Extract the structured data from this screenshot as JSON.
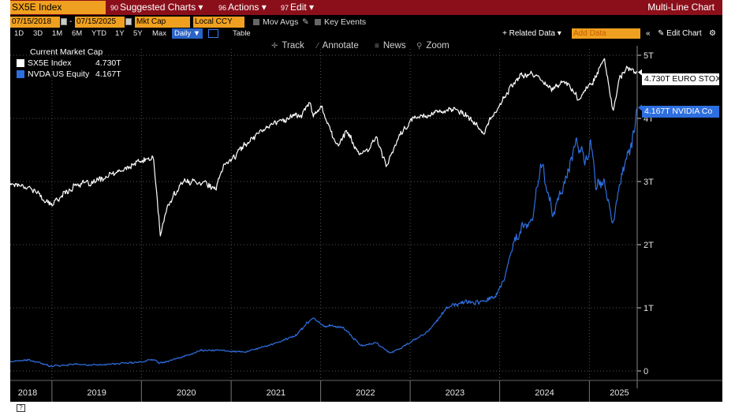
{
  "titlebar": {
    "ticker": "SX5E Index",
    "menus": [
      {
        "num": "90",
        "label": "Suggested Charts ▾"
      },
      {
        "num": "96",
        "label": "Actions ▾"
      },
      {
        "num": "97",
        "label": "Edit ▾"
      }
    ],
    "window_title": "Multi-Line Chart"
  },
  "controls": {
    "start_date": "07/15/2018",
    "end_date": "07/15/2025",
    "field": "Mkt Cap",
    "currency": "Local CCY",
    "mov_avgs": "Mov Avgs",
    "key_events": "Key Events",
    "periods": [
      "1D",
      "3D",
      "1M",
      "6M",
      "YTD",
      "1Y",
      "5Y",
      "Max"
    ],
    "frequency": "Daily ▼",
    "table": "Table",
    "related_data": "+ Related Data ▾",
    "add_data_placeholder": "Add Data",
    "edit_chart": "Edit Chart"
  },
  "toolbar": {
    "track": "Track",
    "annotate": "Annotate",
    "news": "News",
    "zoom": "Zoom"
  },
  "legend": {
    "title": "Current Market Cap",
    "items": [
      {
        "name": "SX5E Index",
        "value": "4.730T",
        "color": "#ffffff"
      },
      {
        "name": "NVDA US Equity",
        "value": "4.167T",
        "color": "#2e6fe0"
      }
    ]
  },
  "tags": {
    "sx5e": "4.730T EURO STOX",
    "nvda": "4.167T NVIDIA Co"
  },
  "colors": {
    "background": "#000000",
    "title_bar": "#8b0f1a",
    "accent_orange": "#f0a020",
    "series_white": "#ffffff",
    "series_blue": "#2e6fe0"
  },
  "chart_data": {
    "type": "line",
    "xlim": [
      "2018-07-15",
      "2025-07-15"
    ],
    "ylim": [
      -0.15,
      5.1
    ],
    "yticks": [
      0,
      1,
      2,
      3,
      4,
      5
    ],
    "ytick_labels": [
      "0",
      "1T",
      "2T",
      "3T",
      "4T",
      "5T"
    ],
    "xtick_labels": [
      "2018",
      "2019",
      "2020",
      "2021",
      "2022",
      "2023",
      "2024",
      "2025"
    ],
    "series": [
      {
        "name": "SX5E Index",
        "color": "#ffffff",
        "points": [
          [
            "2018-07-15",
            2.97
          ],
          [
            "2018-09-01",
            2.95
          ],
          [
            "2018-10-15",
            2.88
          ],
          [
            "2018-12-27",
            2.62
          ],
          [
            "2019-02-15",
            2.8
          ],
          [
            "2019-04-15",
            2.97
          ],
          [
            "2019-06-01",
            2.95
          ],
          [
            "2019-08-15",
            3.08
          ],
          [
            "2019-10-15",
            3.17
          ],
          [
            "2019-12-15",
            3.3
          ],
          [
            "2020-02-19",
            3.38
          ],
          [
            "2020-03-18",
            2.15
          ],
          [
            "2020-04-15",
            2.58
          ],
          [
            "2020-06-08",
            2.97
          ],
          [
            "2020-07-15",
            3.0
          ],
          [
            "2020-09-15",
            3.0
          ],
          [
            "2020-10-30",
            2.85
          ],
          [
            "2020-11-30",
            3.25
          ],
          [
            "2021-01-15",
            3.4
          ],
          [
            "2021-03-15",
            3.65
          ],
          [
            "2021-05-15",
            3.85
          ],
          [
            "2021-07-15",
            3.95
          ],
          [
            "2021-09-15",
            4.05
          ],
          [
            "2021-10-15",
            4.05
          ],
          [
            "2021-11-17",
            4.25
          ],
          [
            "2021-12-01",
            4.05
          ],
          [
            "2022-01-05",
            4.2
          ],
          [
            "2022-03-07",
            3.55
          ],
          [
            "2022-04-15",
            3.8
          ],
          [
            "2022-05-15",
            3.6
          ],
          [
            "2022-06-15",
            3.4
          ],
          [
            "2022-07-15",
            3.5
          ],
          [
            "2022-08-15",
            3.7
          ],
          [
            "2022-09-29",
            3.25
          ],
          [
            "2022-11-15",
            3.7
          ],
          [
            "2023-01-15",
            4.0
          ],
          [
            "2023-03-01",
            4.05
          ],
          [
            "2023-04-15",
            4.1
          ],
          [
            "2023-06-15",
            4.15
          ],
          [
            "2023-08-15",
            4.05
          ],
          [
            "2023-10-27",
            3.78
          ],
          [
            "2023-12-15",
            4.1
          ],
          [
            "2024-02-15",
            4.5
          ],
          [
            "2024-03-31",
            4.68
          ],
          [
            "2024-05-15",
            4.7
          ],
          [
            "2024-07-15",
            4.55
          ],
          [
            "2024-08-05",
            4.45
          ],
          [
            "2024-09-15",
            4.6
          ],
          [
            "2024-10-15",
            4.5
          ],
          [
            "2024-11-20",
            4.3
          ],
          [
            "2025-01-15",
            4.6
          ],
          [
            "2025-03-03",
            4.95
          ],
          [
            "2025-04-08",
            4.1
          ],
          [
            "2025-05-01",
            4.6
          ],
          [
            "2025-06-01",
            4.78
          ],
          [
            "2025-07-15",
            4.73
          ]
        ]
      },
      {
        "name": "NVDA US Equity",
        "color": "#2e6fe0",
        "points": [
          [
            "2018-07-15",
            0.15
          ],
          [
            "2018-10-01",
            0.17
          ],
          [
            "2018-12-24",
            0.08
          ],
          [
            "2019-04-15",
            0.11
          ],
          [
            "2019-06-03",
            0.09
          ],
          [
            "2019-10-15",
            0.12
          ],
          [
            "2019-12-31",
            0.14
          ],
          [
            "2020-02-19",
            0.19
          ],
          [
            "2020-03-16",
            0.13
          ],
          [
            "2020-06-15",
            0.22
          ],
          [
            "2020-09-02",
            0.33
          ],
          [
            "2020-12-15",
            0.32
          ],
          [
            "2021-03-05",
            0.3
          ],
          [
            "2021-06-15",
            0.42
          ],
          [
            "2021-09-15",
            0.55
          ],
          [
            "2021-11-29",
            0.84
          ],
          [
            "2022-01-15",
            0.72
          ],
          [
            "2022-03-29",
            0.7
          ],
          [
            "2022-06-15",
            0.4
          ],
          [
            "2022-08-15",
            0.45
          ],
          [
            "2022-10-13",
            0.28
          ],
          [
            "2022-12-15",
            0.41
          ],
          [
            "2023-03-15",
            0.62
          ],
          [
            "2023-05-31",
            1.0
          ],
          [
            "2023-08-15",
            1.1
          ],
          [
            "2023-10-15",
            1.1
          ],
          [
            "2023-12-15",
            1.18
          ],
          [
            "2024-01-15",
            1.4
          ],
          [
            "2024-02-23",
            1.97
          ],
          [
            "2024-03-28",
            2.25
          ],
          [
            "2024-05-15",
            2.4
          ],
          [
            "2024-06-18",
            3.34
          ],
          [
            "2024-08-05",
            2.47
          ],
          [
            "2024-09-15",
            2.9
          ],
          [
            "2024-11-07",
            3.6
          ],
          [
            "2024-12-15",
            3.3
          ],
          [
            "2025-01-06",
            3.65
          ],
          [
            "2025-01-27",
            2.9
          ],
          [
            "2025-03-01",
            3.0
          ],
          [
            "2025-04-07",
            2.3
          ],
          [
            "2025-05-15",
            3.2
          ],
          [
            "2025-06-15",
            3.5
          ],
          [
            "2025-07-01",
            3.8
          ],
          [
            "2025-07-15",
            4.17
          ]
        ]
      }
    ]
  }
}
